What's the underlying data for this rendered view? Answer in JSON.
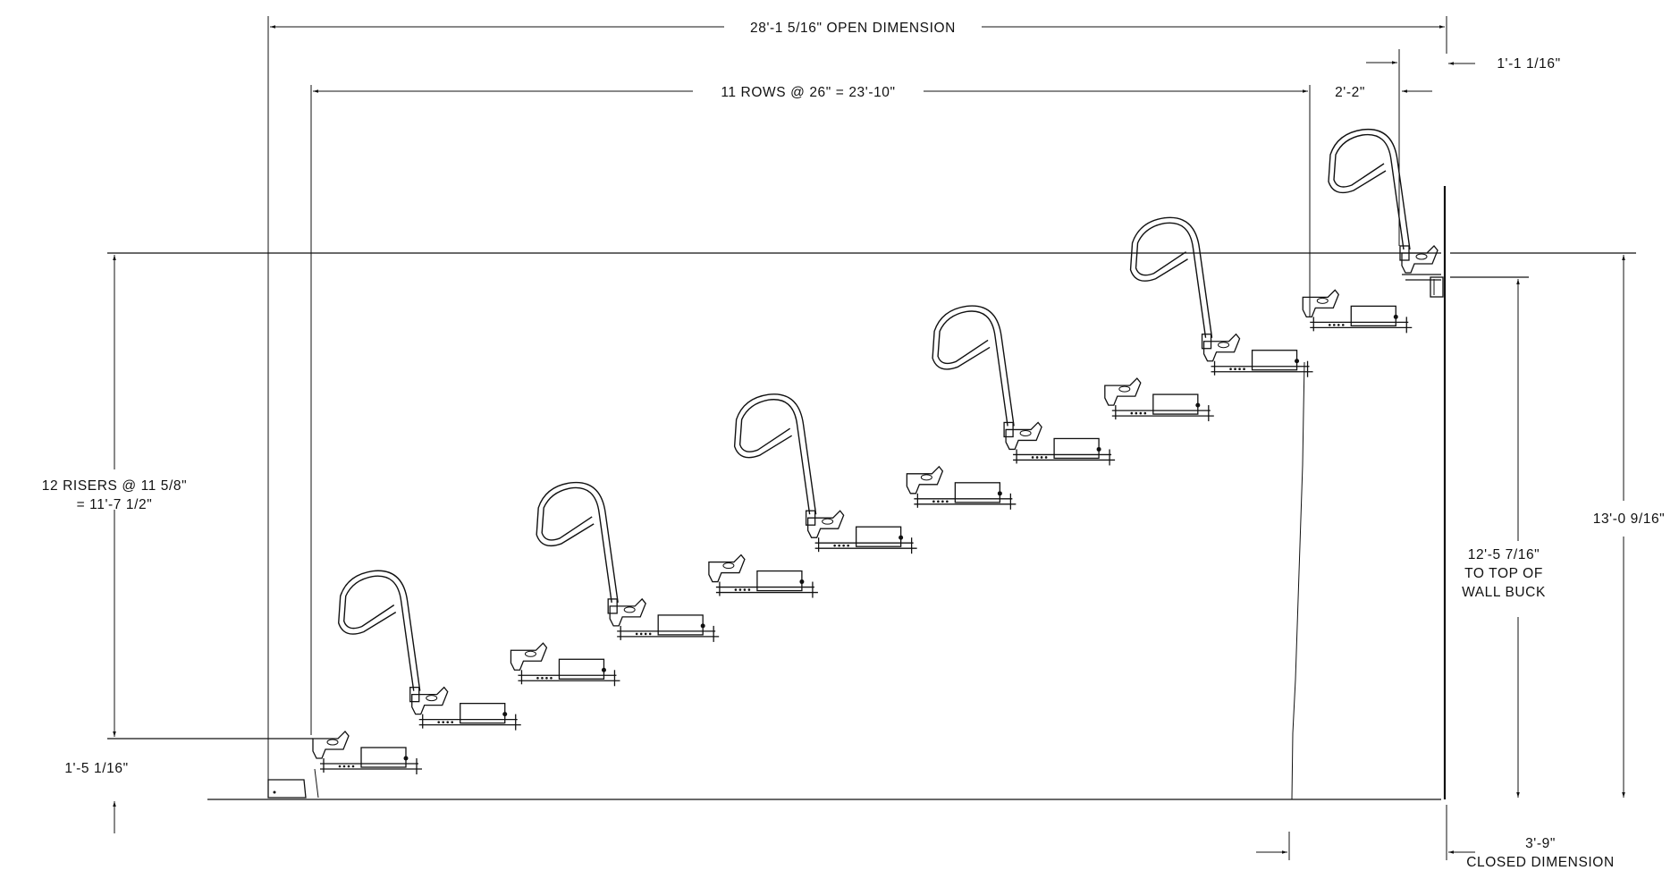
{
  "drawing": {
    "open_dimension": "28'-1 5/16\" OPEN DIMENSION",
    "rows_dimension": "11 ROWS @ 26\" = 23'-10\"",
    "top_gap": "2'-2\"",
    "wall_offset": "1'-1 1/16\"",
    "risers_line1": "12 RISERS @ 11 5/8\"",
    "risers_line2": "= 11'-7 1/2\"",
    "first_rise": "1'-5 1/16\"",
    "total_height": "13'-0 9/16\"",
    "wall_buck_line1": "12'-5 7/16\"",
    "wall_buck_line2": "TO TOP OF",
    "wall_buck_line3": "WALL BUCK",
    "closed_line1": "3'-9\"",
    "closed_line2": "CLOSED DIMENSION"
  }
}
